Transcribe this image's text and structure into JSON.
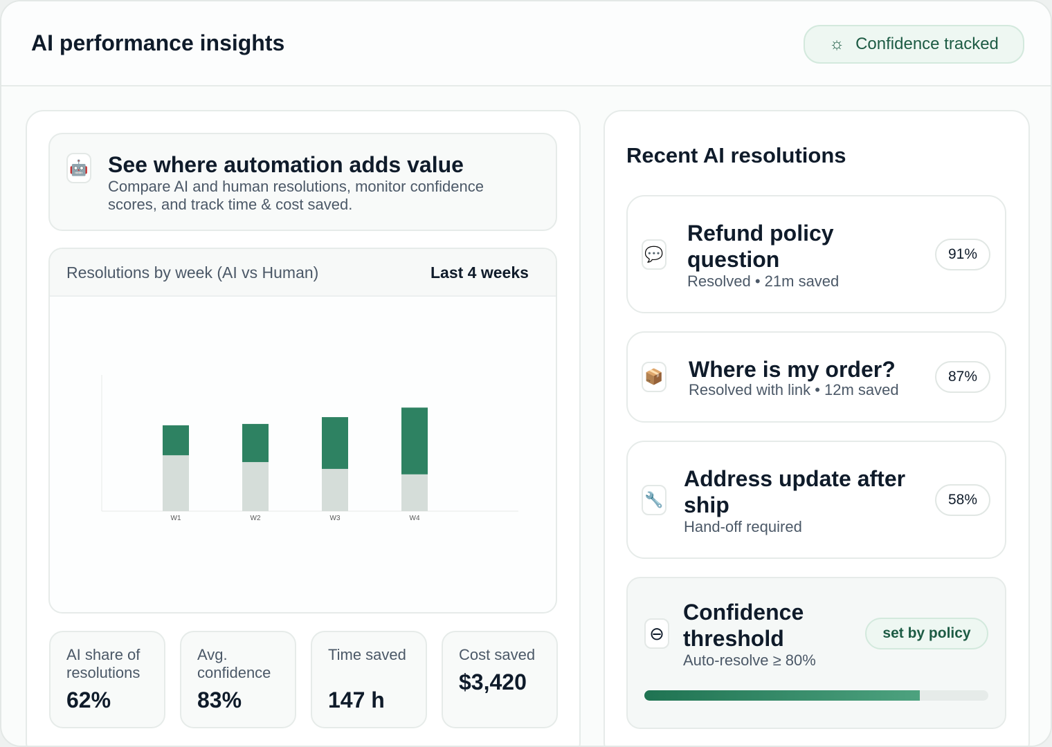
{
  "header": {
    "title": "AI performance insights",
    "badge": "Confidence tracked"
  },
  "intro": {
    "title": "See where automation adds value",
    "text": "Compare AI and human resolutions, monitor confidence scores, and track time & cost saved."
  },
  "chart_card": {
    "title": "Resolutions by week (AI vs Human)",
    "range": "Last 4 weeks"
  },
  "chart_data": {
    "type": "bar",
    "stacked": true,
    "categories": [
      "W1",
      "W2",
      "W3",
      "W4"
    ],
    "series": [
      {
        "color": "#d5ddd9",
        "values": [
          41,
          36,
          31,
          27
        ]
      },
      {
        "color": "#2e8262",
        "values": [
          22,
          28,
          38,
          49
        ]
      }
    ],
    "ylim": [
      0,
      100
    ]
  },
  "stats": [
    {
      "label": "AI share of resolutions",
      "value": "62%"
    },
    {
      "label": "Avg. confidence",
      "value": "83%"
    },
    {
      "label": "Time saved",
      "value": "147 h"
    },
    {
      "label": "Cost saved",
      "value": "$3,420"
    }
  ],
  "resolutions": {
    "title": "Recent AI resolutions",
    "items": [
      {
        "title": "Refund policy question",
        "status": "Resolved",
        "detail": "21m saved",
        "confidence": "91%"
      },
      {
        "title": "Where is my order?",
        "status": "Resolved with link",
        "detail": "12m saved",
        "confidence": "87%"
      },
      {
        "title": "Address update after ship",
        "status": "Hand-off required",
        "confidence": "58%"
      }
    ]
  },
  "threshold": {
    "title": "Confidence threshold",
    "text": "Auto-resolve ≥ 80%",
    "badge": "set by policy",
    "progress": 80
  }
}
